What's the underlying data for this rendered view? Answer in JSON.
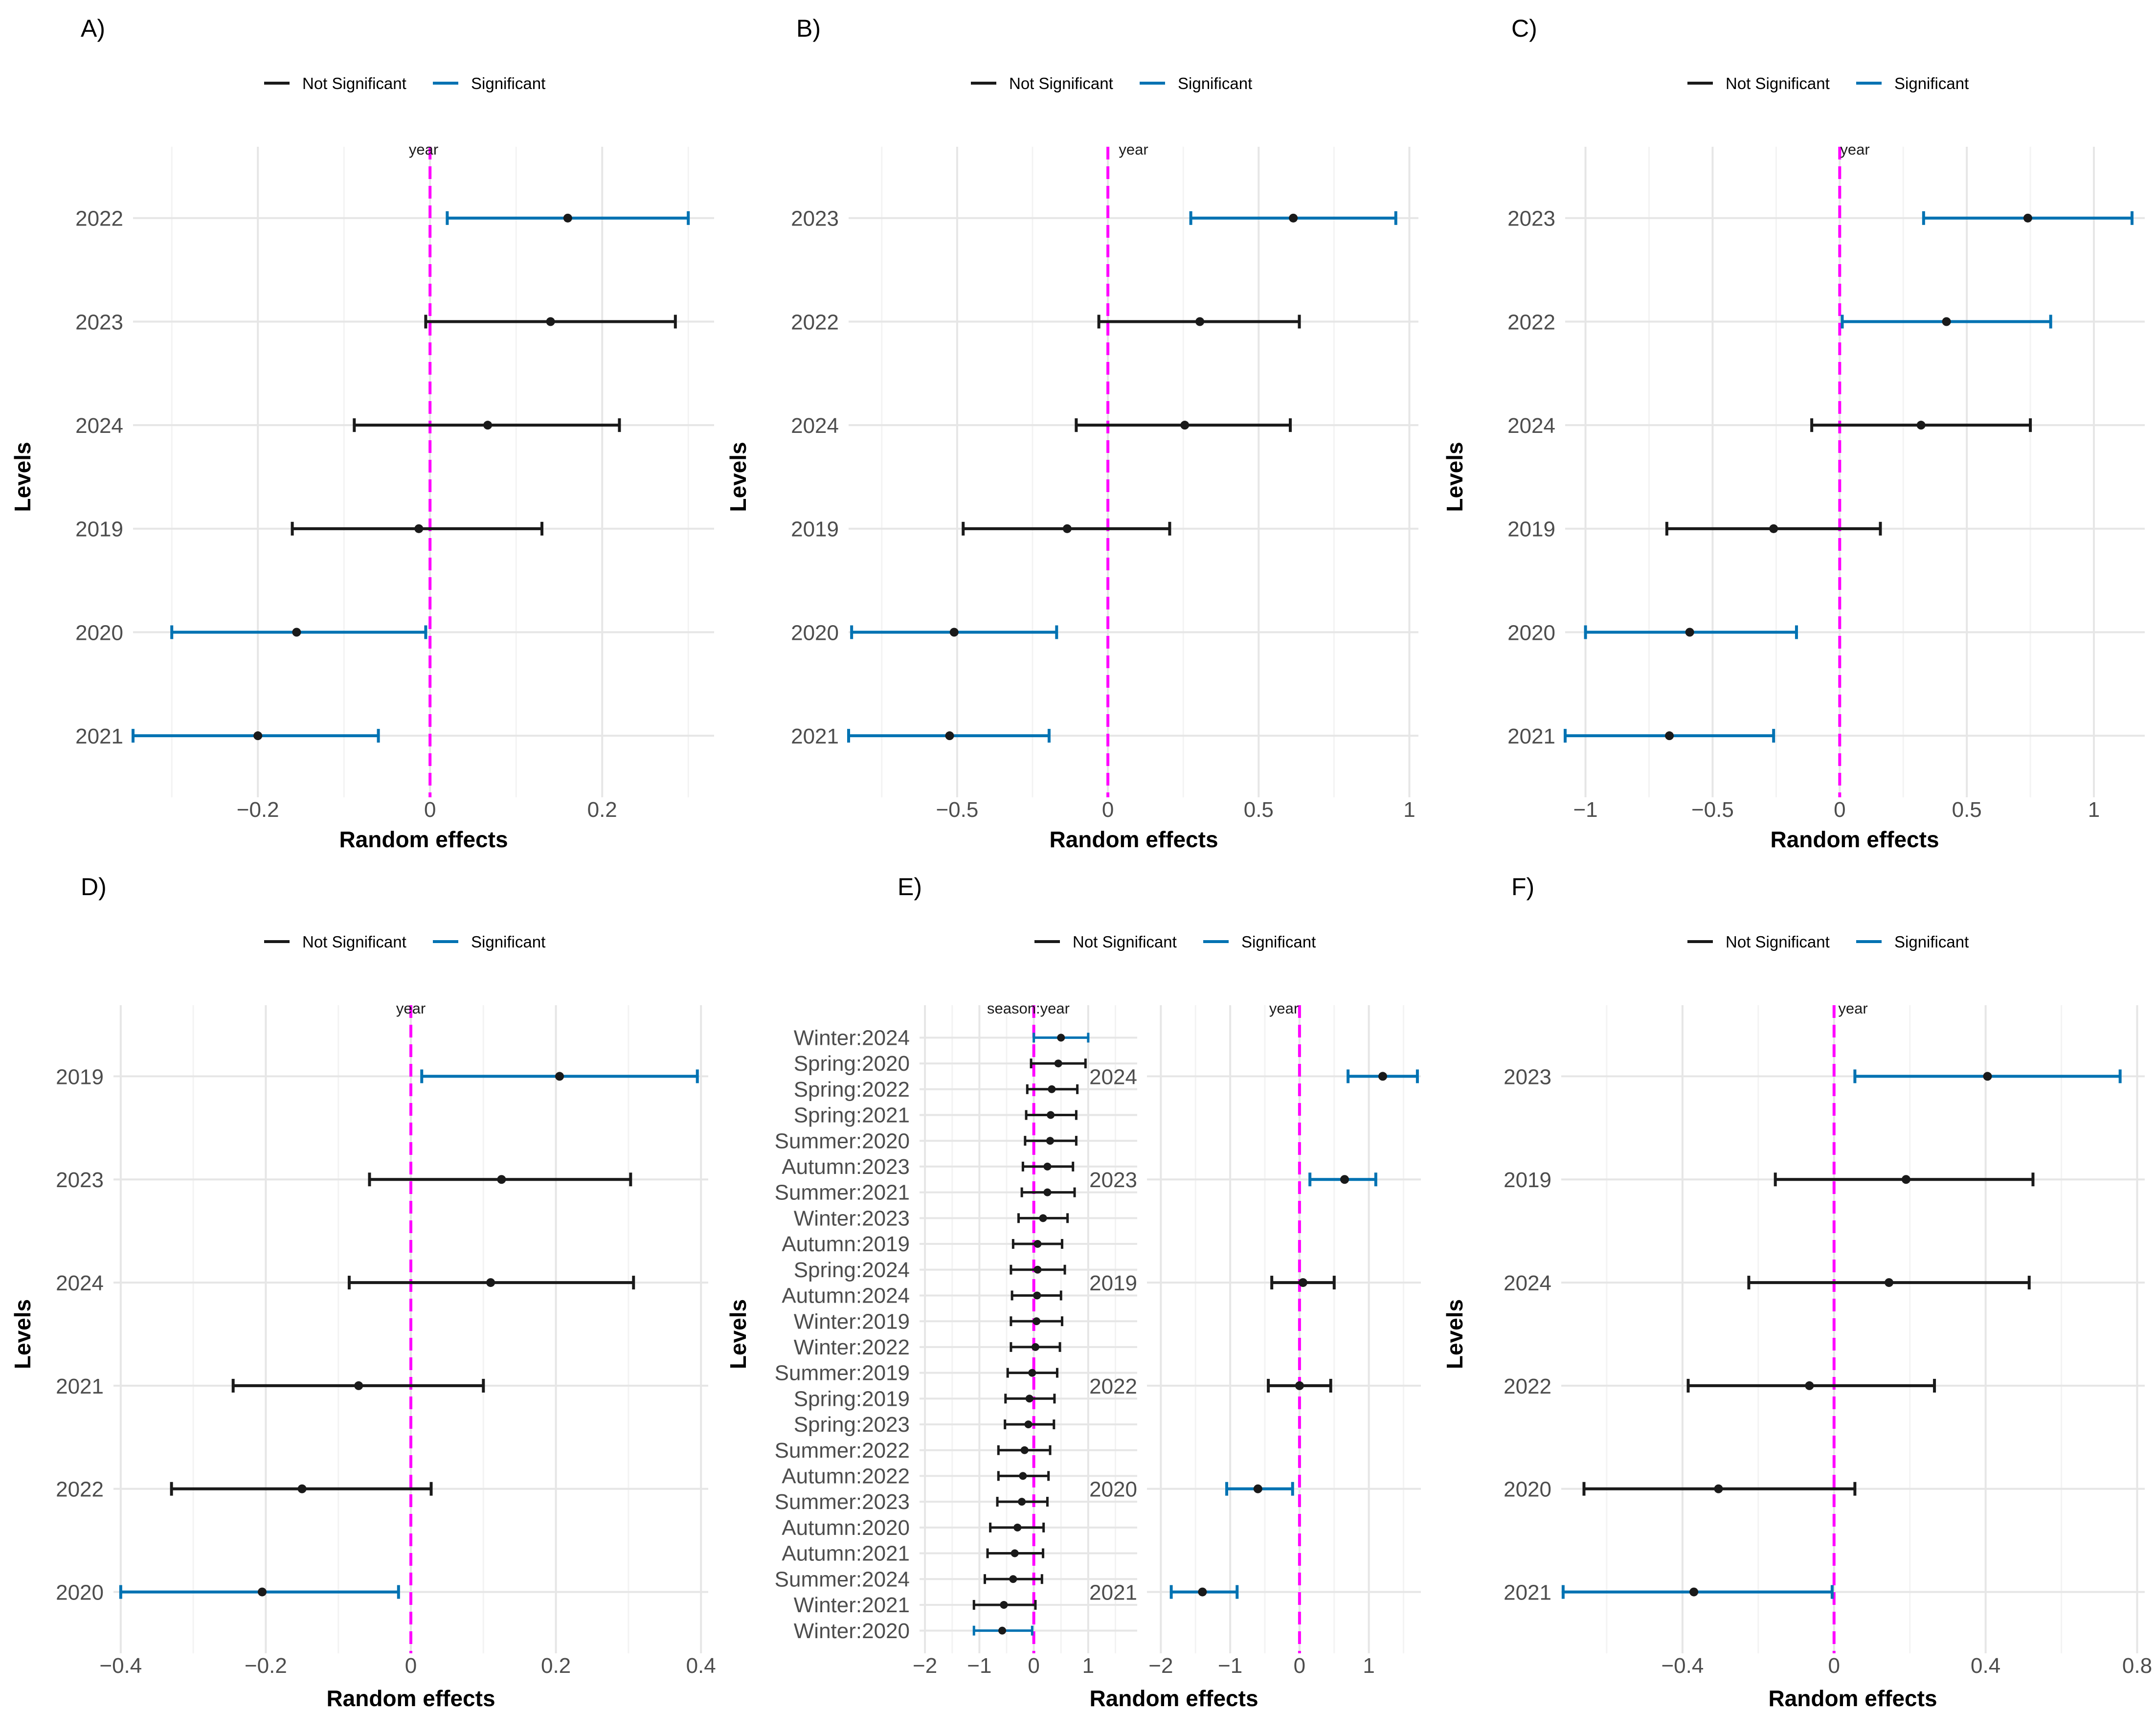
{
  "colors": {
    "not_significant": "#1a1a1a",
    "significant": "#0072b2",
    "reference_line": "#ff00ff"
  },
  "chart_data": [
    {
      "type": "forest",
      "panel_label": "A)",
      "legend": [
        "Not Significant",
        "Significant"
      ],
      "strip": "year",
      "xlabel": "Random effects",
      "ylabel": "Levels",
      "xlim": [
        -0.345,
        0.33
      ],
      "xticks": [
        -0.2,
        0,
        0.2
      ],
      "xtick_labels": [
        "−0.2",
        "0",
        "0.2"
      ],
      "levels": [
        "2022",
        "2023",
        "2024",
        "2019",
        "2020",
        "2021"
      ],
      "estimates": [
        0.16,
        0.14,
        0.067,
        -0.013,
        -0.155,
        -0.2
      ],
      "lower": [
        0.02,
        -0.005,
        -0.088,
        -0.16,
        -0.3,
        -0.345
      ],
      "upper": [
        0.3,
        0.285,
        0.22,
        0.13,
        -0.005,
        -0.06
      ],
      "significant": [
        true,
        false,
        false,
        false,
        true,
        true
      ]
    },
    {
      "type": "forest",
      "panel_label": "B)",
      "legend": [
        "Not Significant",
        "Significant"
      ],
      "strip": "year",
      "xlabel": "Random effects",
      "ylabel": "Levels",
      "xlim": [
        -0.86,
        1.03
      ],
      "xticks": [
        -0.5,
        0,
        0.5,
        1
      ],
      "xtick_labels": [
        "−0.5",
        "0",
        "0.5",
        "1"
      ],
      "levels": [
        "2023",
        "2022",
        "2024",
        "2019",
        "2020",
        "2021"
      ],
      "estimates": [
        0.615,
        0.305,
        0.255,
        -0.135,
        -0.51,
        -0.525
      ],
      "lower": [
        0.275,
        -0.03,
        -0.105,
        -0.48,
        -0.85,
        -0.86
      ],
      "upper": [
        0.955,
        0.635,
        0.605,
        0.205,
        -0.17,
        -0.195
      ],
      "significant": [
        true,
        false,
        false,
        false,
        true,
        true
      ]
    },
    {
      "type": "forest",
      "panel_label": "C)",
      "legend": [
        "Not Significant",
        "Significant"
      ],
      "strip": "year",
      "xlabel": "Random effects",
      "ylabel": "Levels",
      "xlim": [
        -1.08,
        1.2
      ],
      "xticks": [
        -1,
        -0.5,
        0,
        0.5,
        1
      ],
      "xtick_labels": [
        "−1",
        "−0.5",
        "0",
        "0.5",
        "1"
      ],
      "levels": [
        "2023",
        "2022",
        "2024",
        "2019",
        "2020",
        "2021"
      ],
      "estimates": [
        0.74,
        0.42,
        0.32,
        -0.26,
        -0.59,
        -0.67
      ],
      "lower": [
        0.33,
        0.01,
        -0.11,
        -0.68,
        -1.0,
        -1.08
      ],
      "upper": [
        1.15,
        0.83,
        0.75,
        0.16,
        -0.17,
        -0.26
      ],
      "significant": [
        true,
        true,
        false,
        false,
        true,
        true
      ]
    },
    {
      "type": "forest",
      "panel_label": "D)",
      "legend": [
        "Not Significant",
        "Significant"
      ],
      "strip": "year",
      "xlabel": "Random effects",
      "ylabel": "Levels",
      "xlim": [
        -0.41,
        0.41
      ],
      "xticks": [
        -0.4,
        -0.2,
        0,
        0.2,
        0.4
      ],
      "xtick_labels": [
        "−0.4",
        "−0.2",
        "0",
        "0.2",
        "0.4"
      ],
      "levels": [
        "2019",
        "2023",
        "2024",
        "2021",
        "2022",
        "2020"
      ],
      "estimates": [
        0.205,
        0.125,
        0.11,
        -0.072,
        -0.15,
        -0.205
      ],
      "lower": [
        0.015,
        -0.057,
        -0.085,
        -0.245,
        -0.33,
        -0.4
      ],
      "upper": [
        0.395,
        0.303,
        0.307,
        0.1,
        0.028,
        -0.017
      ],
      "significant": [
        true,
        false,
        false,
        false,
        false,
        true
      ]
    },
    {
      "type": "forest",
      "panel_label": "E)",
      "legend": [
        "Not Significant",
        "Significant"
      ],
      "strip": "season:year",
      "xlabel": "",
      "ylabel": "Levels",
      "xlim": [
        -2.1,
        1.9
      ],
      "xticks": [
        -2,
        -1,
        0,
        1
      ],
      "xtick_labels": [
        "−2",
        "−1",
        "0",
        "1"
      ],
      "levels": [
        "Winter:2024",
        "Spring:2020",
        "Spring:2022",
        "Spring:2021",
        "Summer:2020",
        "Autumn:2023",
        "Summer:2021",
        "Winter:2023",
        "Autumn:2019",
        "Spring:2024",
        "Autumn:2024",
        "Winter:2019",
        "Winter:2022",
        "Summer:2019",
        "Spring:2019",
        "Spring:2023",
        "Summer:2022",
        "Autumn:2022",
        "Summer:2023",
        "Autumn:2020",
        "Autumn:2021",
        "Summer:2024",
        "Winter:2021",
        "Winter:2020"
      ],
      "estimates": [
        0.5,
        0.45,
        0.33,
        0.31,
        0.3,
        0.25,
        0.25,
        0.17,
        0.07,
        0.07,
        0.06,
        0.05,
        0.03,
        -0.03,
        -0.08,
        -0.1,
        -0.17,
        -0.2,
        -0.22,
        -0.3,
        -0.35,
        -0.38,
        -0.55,
        -0.58
      ],
      "lower": [
        0.0,
        -0.05,
        -0.12,
        -0.14,
        -0.16,
        -0.2,
        -0.22,
        -0.28,
        -0.38,
        -0.42,
        -0.4,
        -0.42,
        -0.42,
        -0.48,
        -0.52,
        -0.53,
        -0.65,
        -0.65,
        -0.67,
        -0.8,
        -0.85,
        -0.9,
        -1.1,
        -1.1
      ],
      "upper": [
        1.0,
        0.95,
        0.8,
        0.78,
        0.78,
        0.72,
        0.75,
        0.62,
        0.52,
        0.57,
        0.5,
        0.52,
        0.48,
        0.43,
        0.38,
        0.37,
        0.3,
        0.27,
        0.25,
        0.18,
        0.17,
        0.15,
        0.03,
        -0.03
      ],
      "significant": [
        true,
        false,
        false,
        false,
        false,
        false,
        false,
        false,
        false,
        false,
        false,
        false,
        false,
        false,
        false,
        false,
        false,
        false,
        false,
        false,
        false,
        false,
        false,
        true
      ]
    },
    {
      "type": "forest",
      "panel_label": "",
      "strip": "year",
      "xlabel": "Random effects",
      "ylabel": "",
      "xlim": [
        -2.2,
        1.75
      ],
      "xticks": [
        -2,
        -1,
        0,
        1
      ],
      "xtick_labels": [
        "−2",
        "−1",
        "0",
        "1"
      ],
      "levels": [
        "2024",
        "2023",
        "2019",
        "2022",
        "2020",
        "2021"
      ],
      "estimates": [
        1.2,
        0.65,
        0.05,
        0.0,
        -0.6,
        -1.4
      ],
      "lower": [
        0.7,
        0.15,
        -0.4,
        -0.45,
        -1.05,
        -1.85
      ],
      "upper": [
        1.7,
        1.1,
        0.5,
        0.45,
        -0.1,
        -0.9
      ],
      "significant": [
        true,
        true,
        false,
        false,
        true,
        true
      ]
    },
    {
      "type": "forest",
      "panel_label": "F)",
      "legend": [
        "Not Significant",
        "Significant"
      ],
      "strip": "year",
      "xlabel": "Random effects",
      "ylabel": "Levels",
      "xlim": [
        -0.72,
        0.82
      ],
      "xticks": [
        -0.4,
        0,
        0.4,
        0.8
      ],
      "xtick_labels": [
        "−0.4",
        "0",
        "0.4",
        "0.8"
      ],
      "levels": [
        "2023",
        "2019",
        "2024",
        "2022",
        "2020",
        "2021"
      ],
      "estimates": [
        0.405,
        0.19,
        0.145,
        -0.065,
        -0.305,
        -0.37
      ],
      "lower": [
        0.055,
        -0.155,
        -0.225,
        -0.385,
        -0.66,
        -0.715
      ],
      "upper": [
        0.755,
        0.525,
        0.515,
        0.265,
        0.055,
        -0.005
      ],
      "significant": [
        true,
        false,
        false,
        false,
        false,
        true
      ]
    }
  ]
}
